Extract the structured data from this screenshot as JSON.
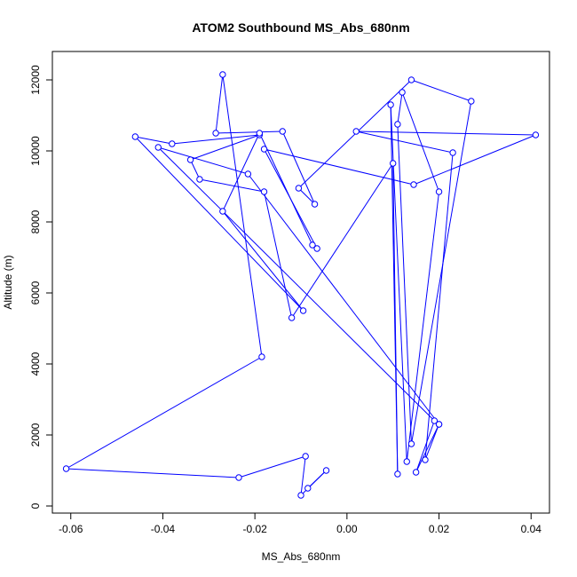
{
  "chart_data": {
    "type": "scatter",
    "title": "ATOM2 Southbound MS_Abs_680nm",
    "xlabel": "MS_Abs_680nm",
    "ylabel": "Altitude (m)",
    "xlim": [
      -0.064,
      0.044
    ],
    "ylim": [
      -200,
      12800
    ],
    "xticks": [
      -0.06,
      -0.04,
      -0.02,
      0.0,
      0.02,
      0.04
    ],
    "xtick_labels": [
      "-0.06",
      "-0.04",
      "-0.02",
      "0.00",
      "0.02",
      "0.04"
    ],
    "yticks": [
      0,
      2000,
      4000,
      6000,
      8000,
      10000,
      12000
    ],
    "ytick_labels": [
      "0",
      "2000",
      "4000",
      "6000",
      "8000",
      "10000",
      "12000"
    ],
    "grid": false,
    "connected": true,
    "color": "#0000ff",
    "x": [
      -0.0085,
      -0.0045,
      -0.01,
      -0.009,
      -0.0235,
      -0.061,
      -0.0185,
      -0.027,
      -0.0285,
      -0.014,
      -0.007,
      -0.0105,
      0.014,
      0.027,
      0.014,
      0.011,
      0.012,
      0.02,
      0.013,
      0.0095,
      0.011,
      0.01,
      -0.012,
      -0.018,
      -0.032,
      -0.034,
      -0.019,
      -0.038,
      -0.046,
      -0.0095,
      -0.027,
      -0.019,
      -0.0075,
      -0.0065,
      -0.018,
      0.0145,
      0.041,
      0.002,
      0.023,
      0.017,
      0.02,
      0.015,
      0.019,
      -0.041,
      -0.0215,
      0.02
    ],
    "y": [
      500,
      1000,
      300,
      1400,
      800,
      1050,
      4200,
      12150,
      10500,
      10550,
      8500,
      8950,
      12000,
      11400,
      1750,
      10750,
      11650,
      8850,
      1250,
      11300,
      900,
      9650,
      5300,
      8850,
      9200,
      9750,
      10450,
      10200,
      10400,
      5500,
      8300,
      10500,
      7350,
      7250,
      10050,
      9050,
      10450,
      10550,
      9950,
      1300,
      2300,
      950,
      2400,
      10100,
      9350,
      2300
    ]
  }
}
